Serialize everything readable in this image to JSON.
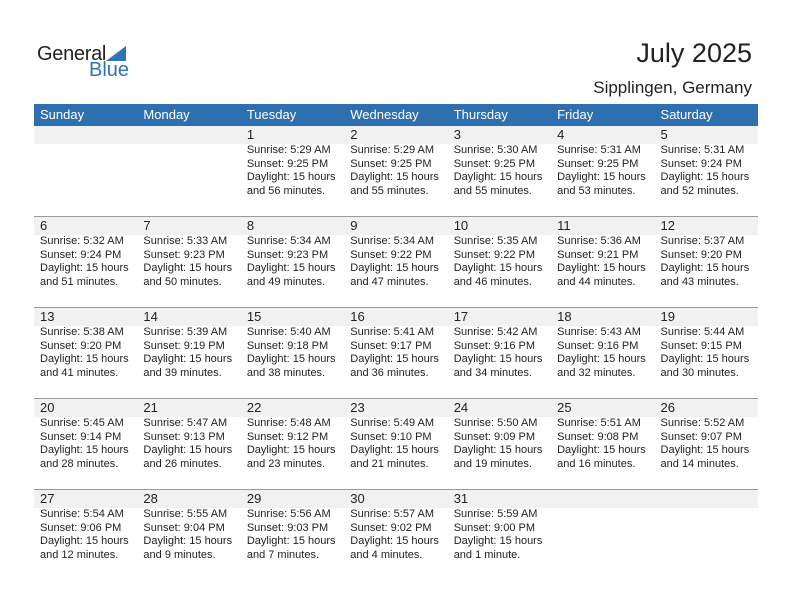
{
  "logo": {
    "line1": "General",
    "line2": "Blue"
  },
  "title": "July 2025",
  "location": "Sipplingen, Germany",
  "colors": {
    "header": "#2e6fb0",
    "brand": "#2e75b6"
  },
  "weekdays": [
    "Sunday",
    "Monday",
    "Tuesday",
    "Wednesday",
    "Thursday",
    "Friday",
    "Saturday"
  ],
  "weeks": [
    [
      null,
      null,
      {
        "d": "1",
        "sr": "Sunrise: 5:29 AM",
        "ss": "Sunset: 9:25 PM",
        "dl": "Daylight: 15 hours",
        "dm": "and 56 minutes."
      },
      {
        "d": "2",
        "sr": "Sunrise: 5:29 AM",
        "ss": "Sunset: 9:25 PM",
        "dl": "Daylight: 15 hours",
        "dm": "and 55 minutes."
      },
      {
        "d": "3",
        "sr": "Sunrise: 5:30 AM",
        "ss": "Sunset: 9:25 PM",
        "dl": "Daylight: 15 hours",
        "dm": "and 55 minutes."
      },
      {
        "d": "4",
        "sr": "Sunrise: 5:31 AM",
        "ss": "Sunset: 9:25 PM",
        "dl": "Daylight: 15 hours",
        "dm": "and 53 minutes."
      },
      {
        "d": "5",
        "sr": "Sunrise: 5:31 AM",
        "ss": "Sunset: 9:24 PM",
        "dl": "Daylight: 15 hours",
        "dm": "and 52 minutes."
      }
    ],
    [
      {
        "d": "6",
        "sr": "Sunrise: 5:32 AM",
        "ss": "Sunset: 9:24 PM",
        "dl": "Daylight: 15 hours",
        "dm": "and 51 minutes."
      },
      {
        "d": "7",
        "sr": "Sunrise: 5:33 AM",
        "ss": "Sunset: 9:23 PM",
        "dl": "Daylight: 15 hours",
        "dm": "and 50 minutes."
      },
      {
        "d": "8",
        "sr": "Sunrise: 5:34 AM",
        "ss": "Sunset: 9:23 PM",
        "dl": "Daylight: 15 hours",
        "dm": "and 49 minutes."
      },
      {
        "d": "9",
        "sr": "Sunrise: 5:34 AM",
        "ss": "Sunset: 9:22 PM",
        "dl": "Daylight: 15 hours",
        "dm": "and 47 minutes."
      },
      {
        "d": "10",
        "sr": "Sunrise: 5:35 AM",
        "ss": "Sunset: 9:22 PM",
        "dl": "Daylight: 15 hours",
        "dm": "and 46 minutes."
      },
      {
        "d": "11",
        "sr": "Sunrise: 5:36 AM",
        "ss": "Sunset: 9:21 PM",
        "dl": "Daylight: 15 hours",
        "dm": "and 44 minutes."
      },
      {
        "d": "12",
        "sr": "Sunrise: 5:37 AM",
        "ss": "Sunset: 9:20 PM",
        "dl": "Daylight: 15 hours",
        "dm": "and 43 minutes."
      }
    ],
    [
      {
        "d": "13",
        "sr": "Sunrise: 5:38 AM",
        "ss": "Sunset: 9:20 PM",
        "dl": "Daylight: 15 hours",
        "dm": "and 41 minutes."
      },
      {
        "d": "14",
        "sr": "Sunrise: 5:39 AM",
        "ss": "Sunset: 9:19 PM",
        "dl": "Daylight: 15 hours",
        "dm": "and 39 minutes."
      },
      {
        "d": "15",
        "sr": "Sunrise: 5:40 AM",
        "ss": "Sunset: 9:18 PM",
        "dl": "Daylight: 15 hours",
        "dm": "and 38 minutes."
      },
      {
        "d": "16",
        "sr": "Sunrise: 5:41 AM",
        "ss": "Sunset: 9:17 PM",
        "dl": "Daylight: 15 hours",
        "dm": "and 36 minutes."
      },
      {
        "d": "17",
        "sr": "Sunrise: 5:42 AM",
        "ss": "Sunset: 9:16 PM",
        "dl": "Daylight: 15 hours",
        "dm": "and 34 minutes."
      },
      {
        "d": "18",
        "sr": "Sunrise: 5:43 AM",
        "ss": "Sunset: 9:16 PM",
        "dl": "Daylight: 15 hours",
        "dm": "and 32 minutes."
      },
      {
        "d": "19",
        "sr": "Sunrise: 5:44 AM",
        "ss": "Sunset: 9:15 PM",
        "dl": "Daylight: 15 hours",
        "dm": "and 30 minutes."
      }
    ],
    [
      {
        "d": "20",
        "sr": "Sunrise: 5:45 AM",
        "ss": "Sunset: 9:14 PM",
        "dl": "Daylight: 15 hours",
        "dm": "and 28 minutes."
      },
      {
        "d": "21",
        "sr": "Sunrise: 5:47 AM",
        "ss": "Sunset: 9:13 PM",
        "dl": "Daylight: 15 hours",
        "dm": "and 26 minutes."
      },
      {
        "d": "22",
        "sr": "Sunrise: 5:48 AM",
        "ss": "Sunset: 9:12 PM",
        "dl": "Daylight: 15 hours",
        "dm": "and 23 minutes."
      },
      {
        "d": "23",
        "sr": "Sunrise: 5:49 AM",
        "ss": "Sunset: 9:10 PM",
        "dl": "Daylight: 15 hours",
        "dm": "and 21 minutes."
      },
      {
        "d": "24",
        "sr": "Sunrise: 5:50 AM",
        "ss": "Sunset: 9:09 PM",
        "dl": "Daylight: 15 hours",
        "dm": "and 19 minutes."
      },
      {
        "d": "25",
        "sr": "Sunrise: 5:51 AM",
        "ss": "Sunset: 9:08 PM",
        "dl": "Daylight: 15 hours",
        "dm": "and 16 minutes."
      },
      {
        "d": "26",
        "sr": "Sunrise: 5:52 AM",
        "ss": "Sunset: 9:07 PM",
        "dl": "Daylight: 15 hours",
        "dm": "and 14 minutes."
      }
    ],
    [
      {
        "d": "27",
        "sr": "Sunrise: 5:54 AM",
        "ss": "Sunset: 9:06 PM",
        "dl": "Daylight: 15 hours",
        "dm": "and 12 minutes."
      },
      {
        "d": "28",
        "sr": "Sunrise: 5:55 AM",
        "ss": "Sunset: 9:04 PM",
        "dl": "Daylight: 15 hours",
        "dm": "and 9 minutes."
      },
      {
        "d": "29",
        "sr": "Sunrise: 5:56 AM",
        "ss": "Sunset: 9:03 PM",
        "dl": "Daylight: 15 hours",
        "dm": "and 7 minutes."
      },
      {
        "d": "30",
        "sr": "Sunrise: 5:57 AM",
        "ss": "Sunset: 9:02 PM",
        "dl": "Daylight: 15 hours",
        "dm": "and 4 minutes."
      },
      {
        "d": "31",
        "sr": "Sunrise: 5:59 AM",
        "ss": "Sunset: 9:00 PM",
        "dl": "Daylight: 15 hours",
        "dm": "and 1 minute."
      },
      null,
      null
    ]
  ]
}
